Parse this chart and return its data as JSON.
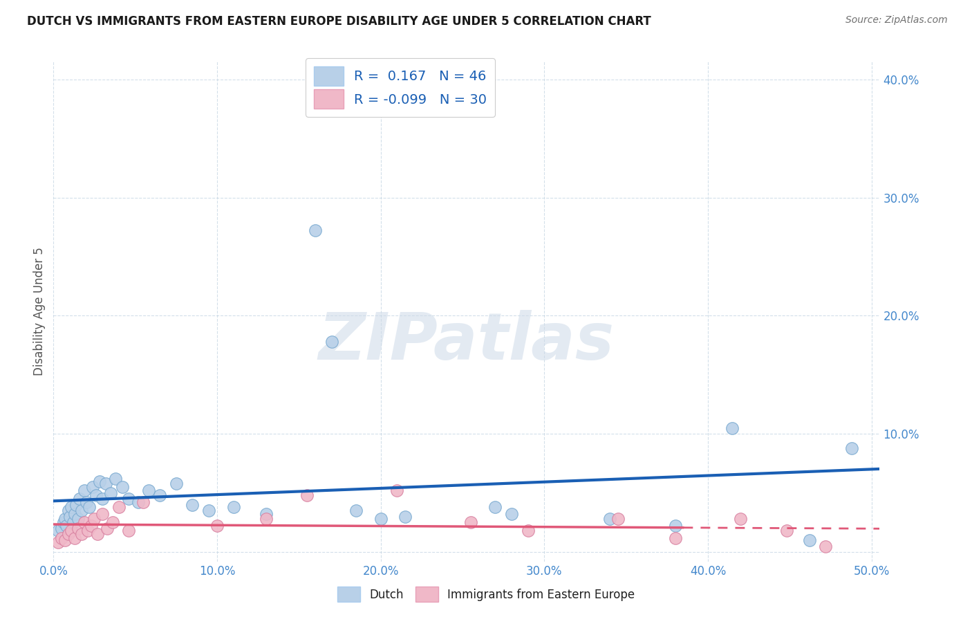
{
  "title": "DUTCH VS IMMIGRANTS FROM EASTERN EUROPE DISABILITY AGE UNDER 5 CORRELATION CHART",
  "source": "Source: ZipAtlas.com",
  "ylabel": "Disability Age Under 5",
  "xlim": [
    0.0,
    0.505
  ],
  "ylim": [
    -0.008,
    0.415
  ],
  "plot_xlim": [
    0.0,
    0.505
  ],
  "xticks": [
    0.0,
    0.1,
    0.2,
    0.3,
    0.4,
    0.5
  ],
  "yticks": [
    0.0,
    0.1,
    0.2,
    0.3,
    0.4
  ],
  "dutch_color": "#b8d0e8",
  "dutch_edge_color": "#7aaad0",
  "dutch_line_color": "#1a5fb4",
  "immigrant_color": "#f0b8c8",
  "immigrant_edge_color": "#d880a0",
  "immigrant_line_color": "#e05878",
  "dutch_R": 0.167,
  "dutch_N": 46,
  "immigrant_R": -0.099,
  "immigrant_N": 30,
  "watermark_text": "ZIPatlas",
  "dutch_x": [
    0.003,
    0.005,
    0.006,
    0.007,
    0.008,
    0.009,
    0.01,
    0.011,
    0.012,
    0.013,
    0.014,
    0.015,
    0.016,
    0.017,
    0.019,
    0.02,
    0.022,
    0.024,
    0.026,
    0.028,
    0.03,
    0.032,
    0.035,
    0.038,
    0.042,
    0.046,
    0.052,
    0.058,
    0.065,
    0.075,
    0.085,
    0.095,
    0.11,
    0.13,
    0.16,
    0.17,
    0.185,
    0.2,
    0.215,
    0.27,
    0.28,
    0.34,
    0.38,
    0.415,
    0.462,
    0.488
  ],
  "dutch_y": [
    0.018,
    0.02,
    0.025,
    0.028,
    0.022,
    0.035,
    0.03,
    0.038,
    0.025,
    0.032,
    0.04,
    0.028,
    0.045,
    0.035,
    0.052,
    0.042,
    0.038,
    0.055,
    0.048,
    0.06,
    0.045,
    0.058,
    0.05,
    0.062,
    0.055,
    0.045,
    0.042,
    0.052,
    0.048,
    0.058,
    0.04,
    0.035,
    0.038,
    0.032,
    0.272,
    0.178,
    0.035,
    0.028,
    0.03,
    0.038,
    0.032,
    0.028,
    0.022,
    0.105,
    0.01,
    0.088
  ],
  "immigrant_x": [
    0.003,
    0.005,
    0.007,
    0.009,
    0.011,
    0.013,
    0.015,
    0.017,
    0.019,
    0.021,
    0.023,
    0.025,
    0.027,
    0.03,
    0.033,
    0.036,
    0.04,
    0.046,
    0.055,
    0.1,
    0.13,
    0.155,
    0.21,
    0.255,
    0.29,
    0.345,
    0.38,
    0.42,
    0.448,
    0.472
  ],
  "immigrant_y": [
    0.008,
    0.012,
    0.01,
    0.015,
    0.018,
    0.012,
    0.02,
    0.015,
    0.025,
    0.018,
    0.022,
    0.028,
    0.015,
    0.032,
    0.02,
    0.025,
    0.038,
    0.018,
    0.042,
    0.022,
    0.028,
    0.048,
    0.052,
    0.025,
    0.018,
    0.028,
    0.012,
    0.028,
    0.018,
    0.005
  ]
}
